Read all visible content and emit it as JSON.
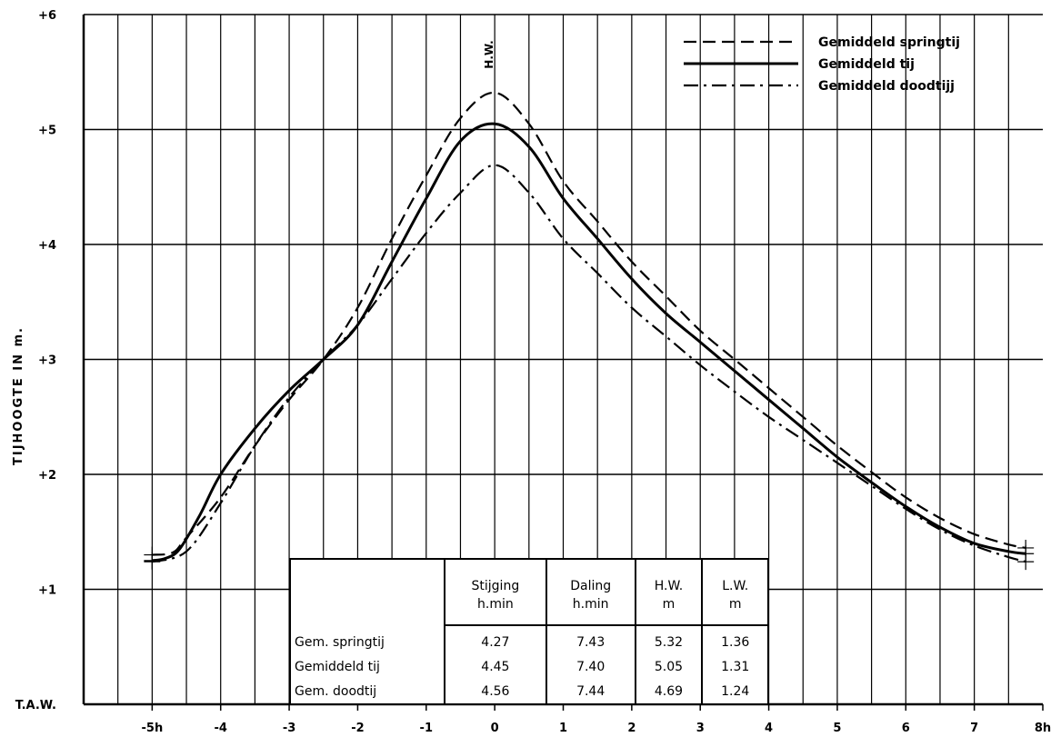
{
  "chart_data": {
    "type": "line",
    "title": "",
    "xlabel": "",
    "ylabel": "TIJHOOGTE IN m.",
    "x_ticks": [
      {
        "value": -5,
        "label": "-5h"
      },
      {
        "value": -4,
        "label": "-4"
      },
      {
        "value": -3,
        "label": "-3"
      },
      {
        "value": -2,
        "label": "-2"
      },
      {
        "value": -1,
        "label": "-1"
      },
      {
        "value": 0,
        "label": "0"
      },
      {
        "value": 1,
        "label": "1"
      },
      {
        "value": 2,
        "label": "2"
      },
      {
        "value": 3,
        "label": "3"
      },
      {
        "value": 4,
        "label": "4"
      },
      {
        "value": 5,
        "label": "5"
      },
      {
        "value": 6,
        "label": "6"
      },
      {
        "value": 7,
        "label": "7"
      },
      {
        "value": 8,
        "label": "8h"
      }
    ],
    "y_ticks": [
      {
        "value": 0,
        "label": "T.A.W."
      },
      {
        "value": 1,
        "label": "+1"
      },
      {
        "value": 2,
        "label": "+2"
      },
      {
        "value": 3,
        "label": "+3"
      },
      {
        "value": 4,
        "label": "+4"
      },
      {
        "value": 5,
        "label": "+5"
      },
      {
        "value": 6,
        "label": "+6"
      }
    ],
    "xlim": [
      -6,
      8
    ],
    "ylim": [
      0,
      6
    ],
    "grid": true,
    "legend_position": "top-right",
    "annotation": "H.W.",
    "annotation_x": 0,
    "series": [
      {
        "name": "Gemiddeld springtij",
        "style": "dashed",
        "points": [
          [
            -5.0,
            1.3
          ],
          [
            -4.7,
            1.32
          ],
          [
            -4.5,
            1.45
          ],
          [
            -4.0,
            1.8
          ],
          [
            -3.5,
            2.25
          ],
          [
            -3.0,
            2.65
          ],
          [
            -2.5,
            3.0
          ],
          [
            -2.0,
            3.45
          ],
          [
            -1.5,
            4.05
          ],
          [
            -1.0,
            4.6
          ],
          [
            -0.5,
            5.1
          ],
          [
            0.0,
            5.32
          ],
          [
            0.5,
            5.05
          ],
          [
            1.0,
            4.55
          ],
          [
            1.5,
            4.2
          ],
          [
            2.0,
            3.85
          ],
          [
            2.5,
            3.55
          ],
          [
            3.0,
            3.25
          ],
          [
            3.5,
            3.0
          ],
          [
            4.0,
            2.75
          ],
          [
            4.5,
            2.5
          ],
          [
            5.0,
            2.25
          ],
          [
            5.5,
            2.02
          ],
          [
            6.0,
            1.8
          ],
          [
            6.5,
            1.62
          ],
          [
            7.0,
            1.48
          ],
          [
            7.5,
            1.39
          ],
          [
            7.75,
            1.36
          ]
        ]
      },
      {
        "name": "Gemiddeld tij",
        "style": "solid",
        "points": [
          [
            -5.0,
            1.25
          ],
          [
            -4.8,
            1.27
          ],
          [
            -4.6,
            1.35
          ],
          [
            -4.3,
            1.65
          ],
          [
            -4.0,
            2.0
          ],
          [
            -3.5,
            2.4
          ],
          [
            -3.0,
            2.73
          ],
          [
            -2.5,
            3.0
          ],
          [
            -2.0,
            3.3
          ],
          [
            -1.5,
            3.85
          ],
          [
            -1.0,
            4.4
          ],
          [
            -0.5,
            4.9
          ],
          [
            0.0,
            5.05
          ],
          [
            0.5,
            4.85
          ],
          [
            1.0,
            4.4
          ],
          [
            1.5,
            4.05
          ],
          [
            2.0,
            3.7
          ],
          [
            2.5,
            3.4
          ],
          [
            3.0,
            3.15
          ],
          [
            3.5,
            2.9
          ],
          [
            4.0,
            2.65
          ],
          [
            4.5,
            2.4
          ],
          [
            5.0,
            2.15
          ],
          [
            5.5,
            1.93
          ],
          [
            6.0,
            1.72
          ],
          [
            6.5,
            1.54
          ],
          [
            7.0,
            1.4
          ],
          [
            7.5,
            1.33
          ],
          [
            7.75,
            1.31
          ]
        ]
      },
      {
        "name": "Gemiddeld doodtijj",
        "style": "dashdot",
        "points": [
          [
            -5.0,
            1.24
          ],
          [
            -4.5,
            1.33
          ],
          [
            -4.0,
            1.75
          ],
          [
            -3.5,
            2.25
          ],
          [
            -3.0,
            2.67
          ],
          [
            -2.5,
            3.0
          ],
          [
            -2.0,
            3.3
          ],
          [
            -1.5,
            3.7
          ],
          [
            -1.0,
            4.1
          ],
          [
            -0.5,
            4.45
          ],
          [
            0.0,
            4.69
          ],
          [
            0.5,
            4.45
          ],
          [
            1.0,
            4.05
          ],
          [
            1.5,
            3.75
          ],
          [
            2.0,
            3.45
          ],
          [
            2.5,
            3.2
          ],
          [
            3.0,
            2.95
          ],
          [
            3.5,
            2.72
          ],
          [
            4.0,
            2.5
          ],
          [
            4.5,
            2.3
          ],
          [
            5.0,
            2.1
          ],
          [
            5.5,
            1.9
          ],
          [
            6.0,
            1.7
          ],
          [
            6.5,
            1.52
          ],
          [
            7.0,
            1.38
          ],
          [
            7.5,
            1.28
          ],
          [
            7.75,
            1.24
          ]
        ]
      }
    ],
    "table": {
      "headers": [
        {
          "line1": "",
          "line2": ""
        },
        {
          "line1": "Stijging",
          "line2": "h.min"
        },
        {
          "line1": "Daling",
          "line2": "h.min"
        },
        {
          "line1": "H.W.",
          "line2": "m"
        },
        {
          "line1": "L.W.",
          "line2": "m"
        }
      ],
      "rows": [
        {
          "label": "Gem. springtij",
          "values": [
            "4.27",
            "7.43",
            "5.32",
            "1.36"
          ]
        },
        {
          "label": "Gemiddeld tij",
          "values": [
            "4.45",
            "7.40",
            "5.05",
            "1.31"
          ]
        },
        {
          "label": "Gem. doodtij",
          "values": [
            "4.56",
            "7.44",
            "4.69",
            "1.24"
          ]
        }
      ]
    }
  }
}
